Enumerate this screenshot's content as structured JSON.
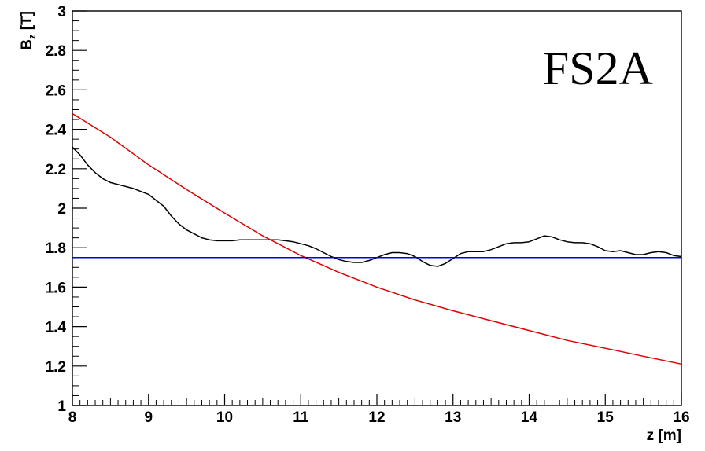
{
  "chart_data": {
    "type": "line",
    "title": "",
    "annotation": "FS2A",
    "xlabel": "z [m]",
    "ylabel": {
      "main": "B",
      "subscript": "z",
      "unit": " [T]"
    },
    "xlim": [
      8,
      16
    ],
    "ylim": [
      1,
      3
    ],
    "x_ticks": [
      8,
      9,
      10,
      11,
      12,
      13,
      14,
      15,
      16
    ],
    "y_ticks": [
      1,
      1.2,
      1.4,
      1.6,
      1.8,
      2,
      2.2,
      2.4,
      2.6,
      2.8,
      3
    ],
    "x_tick_labels": [
      "8",
      "9",
      "10",
      "11",
      "12",
      "13",
      "14",
      "15",
      "16"
    ],
    "y_tick_labels": [
      "1",
      "1.2",
      "1.4",
      "1.6",
      "1.8",
      "2",
      "2.2",
      "2.4",
      "2.6",
      "2.8",
      "3"
    ],
    "grid": false,
    "series": [
      {
        "color": "#000000",
        "points": [
          [
            8.0,
            2.31
          ],
          [
            8.1,
            2.27
          ],
          [
            8.2,
            2.22
          ],
          [
            8.3,
            2.18
          ],
          [
            8.4,
            2.15
          ],
          [
            8.5,
            2.13
          ],
          [
            8.6,
            2.12
          ],
          [
            8.7,
            2.11
          ],
          [
            8.8,
            2.1
          ],
          [
            8.9,
            2.085
          ],
          [
            9.0,
            2.07
          ],
          [
            9.1,
            2.04
          ],
          [
            9.2,
            2.01
          ],
          [
            9.3,
            1.96
          ],
          [
            9.4,
            1.92
          ],
          [
            9.5,
            1.89
          ],
          [
            9.6,
            1.87
          ],
          [
            9.7,
            1.85
          ],
          [
            9.8,
            1.84
          ],
          [
            9.9,
            1.835
          ],
          [
            10.0,
            1.835
          ],
          [
            10.1,
            1.835
          ],
          [
            10.2,
            1.84
          ],
          [
            10.3,
            1.84
          ],
          [
            10.4,
            1.84
          ],
          [
            10.5,
            1.84
          ],
          [
            10.6,
            1.84
          ],
          [
            10.7,
            1.84
          ],
          [
            10.8,
            1.835
          ],
          [
            10.9,
            1.83
          ],
          [
            11.0,
            1.82
          ],
          [
            11.1,
            1.81
          ],
          [
            11.2,
            1.795
          ],
          [
            11.3,
            1.775
          ],
          [
            11.4,
            1.755
          ],
          [
            11.5,
            1.74
          ],
          [
            11.6,
            1.73
          ],
          [
            11.7,
            1.725
          ],
          [
            11.8,
            1.725
          ],
          [
            11.9,
            1.735
          ],
          [
            12.0,
            1.75
          ],
          [
            12.1,
            1.765
          ],
          [
            12.2,
            1.775
          ],
          [
            12.3,
            1.775
          ],
          [
            12.4,
            1.77
          ],
          [
            12.5,
            1.755
          ],
          [
            12.6,
            1.73
          ],
          [
            12.7,
            1.71
          ],
          [
            12.8,
            1.705
          ],
          [
            12.9,
            1.72
          ],
          [
            13.0,
            1.745
          ],
          [
            13.1,
            1.77
          ],
          [
            13.2,
            1.78
          ],
          [
            13.3,
            1.78
          ],
          [
            13.4,
            1.78
          ],
          [
            13.5,
            1.79
          ],
          [
            13.6,
            1.805
          ],
          [
            13.7,
            1.82
          ],
          [
            13.8,
            1.825
          ],
          [
            13.9,
            1.825
          ],
          [
            14.0,
            1.83
          ],
          [
            14.1,
            1.845
          ],
          [
            14.2,
            1.86
          ],
          [
            14.3,
            1.855
          ],
          [
            14.4,
            1.84
          ],
          [
            14.5,
            1.83
          ],
          [
            14.6,
            1.825
          ],
          [
            14.7,
            1.825
          ],
          [
            14.8,
            1.82
          ],
          [
            14.9,
            1.805
          ],
          [
            15.0,
            1.785
          ],
          [
            15.1,
            1.78
          ],
          [
            15.2,
            1.785
          ],
          [
            15.3,
            1.775
          ],
          [
            15.4,
            1.765
          ],
          [
            15.5,
            1.765
          ],
          [
            15.6,
            1.775
          ],
          [
            15.7,
            1.78
          ],
          [
            15.8,
            1.775
          ],
          [
            15.9,
            1.76
          ],
          [
            16.0,
            1.755
          ]
        ]
      },
      {
        "color": "#e00000",
        "points": [
          [
            8.0,
            2.48
          ],
          [
            8.5,
            2.36
          ],
          [
            9.0,
            2.22
          ],
          [
            9.5,
            2.095
          ],
          [
            10.0,
            1.975
          ],
          [
            10.5,
            1.86
          ],
          [
            11.0,
            1.76
          ],
          [
            11.5,
            1.675
          ],
          [
            12.0,
            1.6
          ],
          [
            12.5,
            1.535
          ],
          [
            13.0,
            1.48
          ],
          [
            13.5,
            1.43
          ],
          [
            14.0,
            1.38
          ],
          [
            14.5,
            1.33
          ],
          [
            15.0,
            1.29
          ],
          [
            15.5,
            1.25
          ],
          [
            16.0,
            1.21
          ]
        ]
      },
      {
        "color": "#0000dd",
        "points": [
          [
            8.0,
            1.75
          ],
          [
            16.0,
            1.75
          ]
        ]
      }
    ]
  }
}
